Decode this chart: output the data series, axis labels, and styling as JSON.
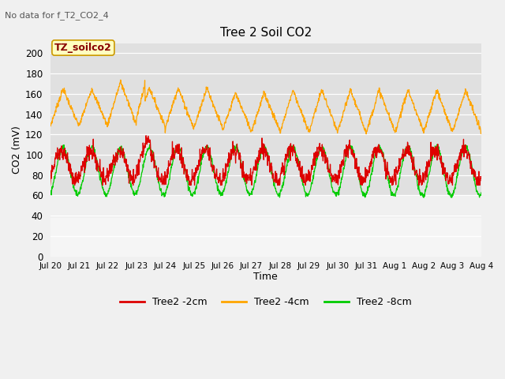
{
  "title": "Tree 2 Soil CO2",
  "top_left_note": "No data for f_T2_CO2_4",
  "ylabel": "CO2 (mV)",
  "xlabel": "Time",
  "legend_box_label": "TZ_soilco2",
  "ylim": [
    0,
    210
  ],
  "yticks": [
    0,
    20,
    40,
    60,
    80,
    100,
    120,
    140,
    160,
    180,
    200
  ],
  "xtick_labels": [
    "Jul 20",
    "Jul 21",
    "Jul 22",
    "Jul 23",
    "Jul 24",
    "Jul 25",
    "Jul 26",
    "Jul 27",
    "Jul 28",
    "Jul 29",
    "Jul 30",
    "Jul 31",
    "Aug 1",
    "Aug 2",
    "Aug 3",
    "Aug 4"
  ],
  "line_colors": {
    "2cm": "#dd0000",
    "4cm": "#ffa500",
    "8cm": "#00cc00"
  },
  "legend_labels": [
    "Tree2 -2cm",
    "Tree2 -4cm",
    "Tree2 -8cm"
  ],
  "fig_bg": "#f0f0f0",
  "plot_bg_upper": "#e0e0e0",
  "plot_bg_lower": "#ffffff",
  "grid_color": "#ffffff",
  "n_days": 15,
  "n_per_day": 96,
  "figsize": [
    6.4,
    4.8
  ],
  "dpi": 100
}
